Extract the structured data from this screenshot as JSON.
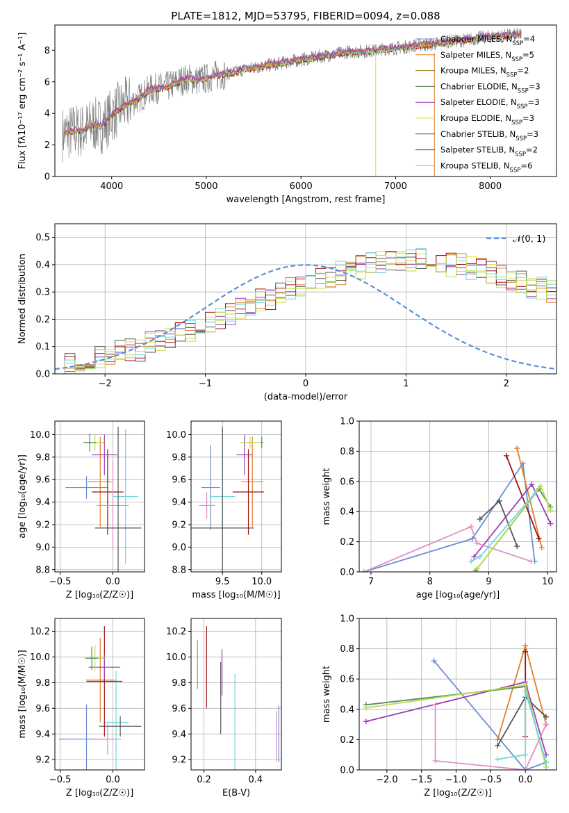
{
  "title": "PLATE=1812, MJD=53795, FIBERID=0094, z=0.088",
  "colors": {
    "chabrier_miles": "#6a8fd0",
    "salpeter_miles": "#e07f2a",
    "kroupa_miles": "#9a7a1a",
    "chabrier_elodie": "#4f7a4f",
    "salpeter_elodie": "#9a3fb0",
    "kroupa_elodie": "#d6d84a",
    "chabrier_stelib": "#555555",
    "salpeter_stelib": "#a01010",
    "kroupa_stelib": "#6fd6e0",
    "pink": "#e28fc4",
    "lime": "#b9dc4a",
    "green": "#4f8f5f",
    "normal": "#5a8ed8"
  },
  "chart_data": [
    {
      "name": "spectrum",
      "type": "line",
      "title": "PLATE=1812, MJD=53795, FIBERID=0094, z=0.088",
      "xlabel": "wavelength [Angstrom, rest frame]",
      "ylabel": "Flux [fλ10⁻¹⁷ erg cm⁻² s⁻¹ A⁻¹]",
      "xlim": [
        3400,
        8700
      ],
      "ylim": [
        0,
        9.6
      ],
      "xticks": [
        "4000",
        "5000",
        "6000",
        "7000",
        "8000"
      ],
      "yticks": [
        "0",
        "2",
        "4",
        "6",
        "8"
      ],
      "legend_position": "right",
      "legend": [
        "Chabrier MILES, N_SSP=4",
        "Salpeter MILES, N_SSP=5",
        "Kroupa MILES, N_SSP=2",
        "Chabrier ELODIE, N_SSP=3",
        "Salpeter ELODIE, N_SSP=3",
        "Kroupa ELODIE, N_SSP=3",
        "Chabrier STELIB, N_SSP=3",
        "Salpeter STELIB, N_SSP=2",
        "Kroupa STELIB, N_SSP=6"
      ],
      "model_x": [
        3500,
        3600,
        3700,
        3800,
        3900,
        4000,
        4100,
        4200,
        4300,
        4400,
        4500,
        4600,
        4700,
        4800,
        4900,
        5000,
        5100,
        5200,
        5300,
        5400,
        5500,
        5600,
        5700,
        5800,
        5900,
        6000,
        6100,
        6200,
        6300,
        6400,
        6500,
        6600,
        6700,
        6800,
        6900,
        7000,
        7100,
        7200,
        7300,
        7400,
        7500,
        7600,
        7700,
        7800,
        7900,
        8000,
        8100,
        8200,
        8300
      ],
      "model_y": [
        2.7,
        2.9,
        2.9,
        3.3,
        3.2,
        3.9,
        4.4,
        4.7,
        5.0,
        5.5,
        5.6,
        5.7,
        6.0,
        6.2,
        6.1,
        6.2,
        6.4,
        6.5,
        6.6,
        6.8,
        6.9,
        7.0,
        7.1,
        7.2,
        7.3,
        7.4,
        7.5,
        7.6,
        7.7,
        7.8,
        7.9,
        7.9,
        7.95,
        8.0,
        8.1,
        8.15,
        8.2,
        8.3,
        8.35,
        8.4,
        8.5,
        8.6,
        8.6,
        8.7,
        8.8,
        8.85,
        8.9,
        8.95,
        9.0
      ],
      "spikes": [
        {
          "x": 6790,
          "color": "kroupa_elodie"
        },
        {
          "x": 7410,
          "color": "salpeter_miles"
        }
      ]
    },
    {
      "name": "residual-histogram",
      "type": "bar",
      "xlabel": "(data-model)/error",
      "ylabel": "Normed distribution",
      "xlim": [
        -2.5,
        2.5
      ],
      "ylim": [
        0,
        0.55
      ],
      "xticks": [
        "−2",
        "−1",
        "0",
        "1",
        "2"
      ],
      "yticks": [
        "0.0",
        "0.1",
        "0.2",
        "0.3",
        "0.4",
        "0.5"
      ],
      "legend": [
        "𝒩(0, 1)"
      ],
      "legend_position": "top-right",
      "bin_width": 0.1,
      "bin_start": -2.5,
      "envelope": [
        0.02,
        0.04,
        0.05,
        0.05,
        0.06,
        0.07,
        0.08,
        0.09,
        0.09,
        0.11,
        0.12,
        0.13,
        0.15,
        0.16,
        0.17,
        0.19,
        0.2,
        0.22,
        0.24,
        0.25,
        0.27,
        0.28,
        0.3,
        0.31,
        0.33,
        0.34,
        0.35,
        0.36,
        0.37,
        0.38,
        0.39,
        0.4,
        0.41,
        0.42,
        0.42,
        0.42,
        0.42,
        0.41,
        0.41,
        0.4,
        0.4,
        0.39,
        0.38,
        0.37,
        0.36,
        0.35,
        0.34,
        0.32,
        0.31,
        0.3,
        0.28,
        0.27,
        0.25,
        0.24,
        0.22,
        0.21,
        0.19,
        0.18,
        0.16,
        0.15,
        0.13,
        0.12,
        0.11,
        0.09,
        0.08,
        0.07,
        0.06,
        0.05,
        0.05,
        0.04,
        0.04,
        0.03,
        0.03,
        0.03,
        0.03,
        0.02,
        0.02,
        0.02,
        0.02,
        0.02,
        0.02,
        0.02,
        0.02,
        0.02,
        0.02,
        0.02,
        0.02,
        0.02,
        0.02,
        0.02,
        0.02,
        0.02,
        0.02,
        0.02,
        0.02,
        0.02,
        0.02,
        0.02,
        0.02,
        0.02
      ],
      "normal_curve": {
        "mean": 0,
        "sigma": 1
      }
    },
    {
      "name": "age-vs-metallicity",
      "type": "scatter",
      "xlabel": "Z [log₁₀(Z/Z☉)]",
      "ylabel": "age  [log₁₀(age/yr)]",
      "xlim": [
        -0.55,
        0.3
      ],
      "ylim": [
        8.78,
        10.12
      ],
      "xticks": [
        "−0.5",
        "0.0"
      ],
      "yticks": [
        "8.8",
        "9.0",
        "9.2",
        "9.4",
        "9.6",
        "9.8",
        "10.0"
      ],
      "points": [
        {
          "x": -0.25,
          "y": 9.53,
          "xerr": 0.2,
          "yerr": 0.1,
          "color": "chabrier_miles"
        },
        {
          "x": -0.12,
          "y": 9.58,
          "xerr": 0.12,
          "yerr": 0.4,
          "color": "salpeter_miles"
        },
        {
          "x": -0.05,
          "y": 9.49,
          "xerr": 0.15,
          "yerr": 0.38,
          "color": "salpeter_stelib"
        },
        {
          "x": -0.08,
          "y": 9.82,
          "xerr": 0.12,
          "yerr": 0.18,
          "color": "salpeter_elodie"
        },
        {
          "x": -0.17,
          "y": 9.93,
          "xerr": 0.1,
          "yerr": 0.07,
          "color": "lime"
        },
        {
          "x": -0.22,
          "y": 9.93,
          "xerr": 0.06,
          "yerr": 0.08,
          "color": "green"
        },
        {
          "x": 0.0,
          "y": 9.37,
          "xerr": 0.15,
          "yerr": 0.4,
          "color": "pink"
        },
        {
          "x": 0.12,
          "y": 9.45,
          "xerr": 0.12,
          "yerr": 0.6,
          "color": "kroupa_stelib"
        },
        {
          "x": 0.05,
          "y": 9.17,
          "xerr": 0.22,
          "yerr": 0.9,
          "color": "chabrier_stelib"
        }
      ]
    },
    {
      "name": "age-vs-mass",
      "type": "scatter",
      "xlabel": "mass [log₁₀(M/M☉)]",
      "ylabel": "",
      "xlim": [
        9.1,
        10.25
      ],
      "ylim": [
        8.78,
        10.12
      ],
      "xticks": [
        "9.5",
        "10.0"
      ],
      "yticks": [
        "8.8",
        "9.0",
        "9.2",
        "9.4",
        "9.6",
        "9.8",
        "10.0"
      ],
      "points": [
        {
          "x": 9.35,
          "y": 9.53,
          "xerr": 0.12,
          "yerr": 0.38,
          "color": "chabrier_miles"
        },
        {
          "x": 9.3,
          "y": 9.37,
          "xerr": 0.1,
          "yerr": 0.12,
          "color": "pink"
        },
        {
          "x": 9.5,
          "y": 9.45,
          "xerr": 0.16,
          "yerr": 0.6,
          "color": "kroupa_stelib"
        },
        {
          "x": 9.5,
          "y": 9.17,
          "xerr": 0.4,
          "yerr": 0.9,
          "color": "chabrier_stelib"
        },
        {
          "x": 9.88,
          "y": 9.58,
          "xerr": 0.14,
          "yerr": 0.4,
          "color": "salpeter_miles"
        },
        {
          "x": 9.83,
          "y": 9.49,
          "xerr": 0.2,
          "yerr": 0.38,
          "color": "salpeter_stelib"
        },
        {
          "x": 9.78,
          "y": 9.82,
          "xerr": 0.1,
          "yerr": 0.18,
          "color": "salpeter_elodie"
        },
        {
          "x": 9.85,
          "y": 9.93,
          "xerr": 0.12,
          "yerr": 0.05,
          "color": "lime"
        },
        {
          "x": 10.0,
          "y": 9.93,
          "xerr": 0.02,
          "yerr": 0.05,
          "color": "green"
        }
      ]
    },
    {
      "name": "mass-weight-vs-age",
      "type": "line",
      "xlabel": "age  [log₁₀(age/yr)]",
      "ylabel": "mass weight",
      "xlim": [
        6.8,
        10.15
      ],
      "ylim": [
        0,
        1
      ],
      "xticks": [
        "7",
        "8",
        "9",
        "10"
      ],
      "yticks": [
        "0.0",
        "0.2",
        "0.4",
        "0.6",
        "0.8",
        "1.0"
      ],
      "series": [
        {
          "color": "chabrier_miles",
          "x": [
            6.88,
            8.72,
            9.58,
            9.78
          ],
          "y": [
            0.0,
            0.22,
            0.72,
            0.07
          ]
        },
        {
          "color": "salpeter_miles",
          "x": [
            9.48,
            9.9
          ],
          "y": [
            0.82,
            0.16
          ]
        },
        {
          "color": "salpeter_stelib",
          "x": [
            9.3,
            9.85
          ],
          "y": [
            0.77,
            0.22
          ]
        },
        {
          "color": "salpeter_elodie",
          "x": [
            8.75,
            9.73,
            10.05
          ],
          "y": [
            0.1,
            0.58,
            0.32
          ]
        },
        {
          "color": "chabrier_stelib",
          "x": [
            8.85,
            9.18,
            9.48
          ],
          "y": [
            0.35,
            0.47,
            0.17
          ]
        },
        {
          "color": "pink",
          "x": [
            6.88,
            8.7,
            8.8,
            9.72
          ],
          "y": [
            0.0,
            0.3,
            0.19,
            0.07
          ]
        },
        {
          "color": "green",
          "x": [
            8.78,
            9.85,
            10.05
          ],
          "y": [
            0.01,
            0.55,
            0.43
          ]
        },
        {
          "color": "lime",
          "x": [
            8.8,
            9.88,
            10.05
          ],
          "y": [
            0.02,
            0.57,
            0.41
          ]
        },
        {
          "color": "kroupa_stelib",
          "x": [
            8.7,
            8.85,
            9.78
          ],
          "y": [
            0.07,
            0.1,
            0.52
          ]
        }
      ]
    },
    {
      "name": "mass-vs-metallicity",
      "type": "scatter",
      "xlabel": "Z [log₁₀(Z/Z☉)]",
      "ylabel": "mass [log₁₀(M/M☉)]",
      "xlim": [
        -0.55,
        0.3
      ],
      "ylim": [
        9.12,
        10.3
      ],
      "xticks": [
        "−0.5",
        "0.0"
      ],
      "yticks": [
        "9.2",
        "9.4",
        "9.6",
        "9.8",
        "10.0",
        "10.2"
      ],
      "points": [
        {
          "x": -0.25,
          "y": 9.36,
          "xerr": 0.26,
          "yerr": 0.27,
          "color": "chabrier_miles"
        },
        {
          "x": -0.05,
          "y": 9.36,
          "xerr": 0.13,
          "yerr": 0.12,
          "color": "pink"
        },
        {
          "x": 0.03,
          "y": 9.49,
          "xerr": 0.12,
          "yerr": 0.4,
          "color": "kroupa_stelib"
        },
        {
          "x": 0.07,
          "y": 9.46,
          "xerr": 0.2,
          "yerr": 0.08,
          "color": "chabrier_stelib"
        },
        {
          "x": -0.12,
          "y": 9.82,
          "xerr": 0.14,
          "yerr": 0.33,
          "color": "salpeter_miles"
        },
        {
          "x": -0.08,
          "y": 9.81,
          "xerr": 0.17,
          "yerr": 0.43,
          "color": "salpeter_stelib"
        },
        {
          "x": -0.08,
          "y": 9.92,
          "xerr": 0.15,
          "yerr": 0.1,
          "color": "salpeter_elodie"
        },
        {
          "x": -0.17,
          "y": 9.99,
          "xerr": 0.1,
          "yerr": 0.1,
          "color": "lime"
        },
        {
          "x": -0.2,
          "y": 9.99,
          "xerr": 0.06,
          "yerr": 0.09,
          "color": "green"
        }
      ]
    },
    {
      "name": "mass-vs-extinction",
      "type": "scatter",
      "xlabel": "E(B-V)",
      "ylabel": "",
      "xlim": [
        0.15,
        0.5
      ],
      "ylim": [
        9.12,
        10.3
      ],
      "xticks": [
        "0.2",
        "0.4"
      ],
      "yticks": [
        "9.2",
        "9.4",
        "9.6",
        "9.8",
        "10.0",
        "10.2"
      ],
      "points": [
        {
          "x": 0.175,
          "y": 9.94,
          "xerr": 0,
          "yerr": 0.19,
          "color": "salpeter_miles"
        },
        {
          "x": 0.21,
          "y": 9.92,
          "xerr": 0,
          "yerr": 0.32,
          "color": "salpeter_stelib"
        },
        {
          "x": 0.265,
          "y": 9.68,
          "xerr": 0,
          "yerr": 0.28,
          "color": "chabrier_stelib"
        },
        {
          "x": 0.27,
          "y": 9.88,
          "xerr": 0,
          "yerr": 0.18,
          "color": "salpeter_elodie"
        },
        {
          "x": 0.32,
          "y": 9.49,
          "xerr": 0,
          "yerr": 0.38,
          "color": "kroupa_stelib"
        },
        {
          "x": 0.48,
          "y": 9.38,
          "xerr": 0,
          "yerr": 0.2,
          "color": "pink"
        },
        {
          "x": 0.49,
          "y": 9.4,
          "xerr": 0,
          "yerr": 0.22,
          "color": "chabrier_miles"
        }
      ]
    },
    {
      "name": "mass-weight-vs-metallicity",
      "type": "line",
      "xlabel": "Z [log₁₀(Z/Z☉)]",
      "ylabel": "mass weight",
      "xlim": [
        -2.4,
        0.45
      ],
      "ylim": [
        0,
        1
      ],
      "xticks": [
        "−2.0",
        "−1.5",
        "−1.0",
        "−0.5",
        "0.0"
      ],
      "yticks": [
        "0.0",
        "0.2",
        "0.4",
        "0.6",
        "0.8",
        "1.0"
      ],
      "series": [
        {
          "color": "chabrier_miles",
          "x": [
            -1.32,
            0.0,
            0.3
          ],
          "y": [
            0.72,
            0.0,
            0.05
          ]
        },
        {
          "color": "salpeter_miles",
          "x": [
            -0.4,
            0.0,
            0.3
          ],
          "y": [
            0.2,
            0.82,
            0.3
          ]
        },
        {
          "color": "salpeter_stelib",
          "x": [
            0.0,
            0.0
          ],
          "y": [
            0.78,
            0.22
          ]
        },
        {
          "color": "salpeter_elodie",
          "x": [
            -2.3,
            0.0,
            0.3
          ],
          "y": [
            0.32,
            0.58,
            0.1
          ]
        },
        {
          "color": "chabrier_stelib",
          "x": [
            -0.4,
            0.0,
            0.3
          ],
          "y": [
            0.16,
            0.48,
            0.35
          ]
        },
        {
          "color": "pink",
          "x": [
            -1.3,
            -1.3,
            0.0,
            0.3
          ],
          "y": [
            0.43,
            0.06,
            0.0,
            0.3
          ]
        },
        {
          "color": "green",
          "x": [
            -2.3,
            0.0,
            0.3
          ],
          "y": [
            0.43,
            0.55,
            0.02
          ]
        },
        {
          "color": "lime",
          "x": [
            -2.3,
            0.0,
            0.3
          ],
          "y": [
            0.41,
            0.56,
            0.02
          ]
        },
        {
          "color": "kroupa_stelib",
          "x": [
            -0.4,
            0.0,
            0.0,
            0.3
          ],
          "y": [
            0.07,
            0.1,
            0.52,
            0.05
          ]
        }
      ]
    }
  ]
}
